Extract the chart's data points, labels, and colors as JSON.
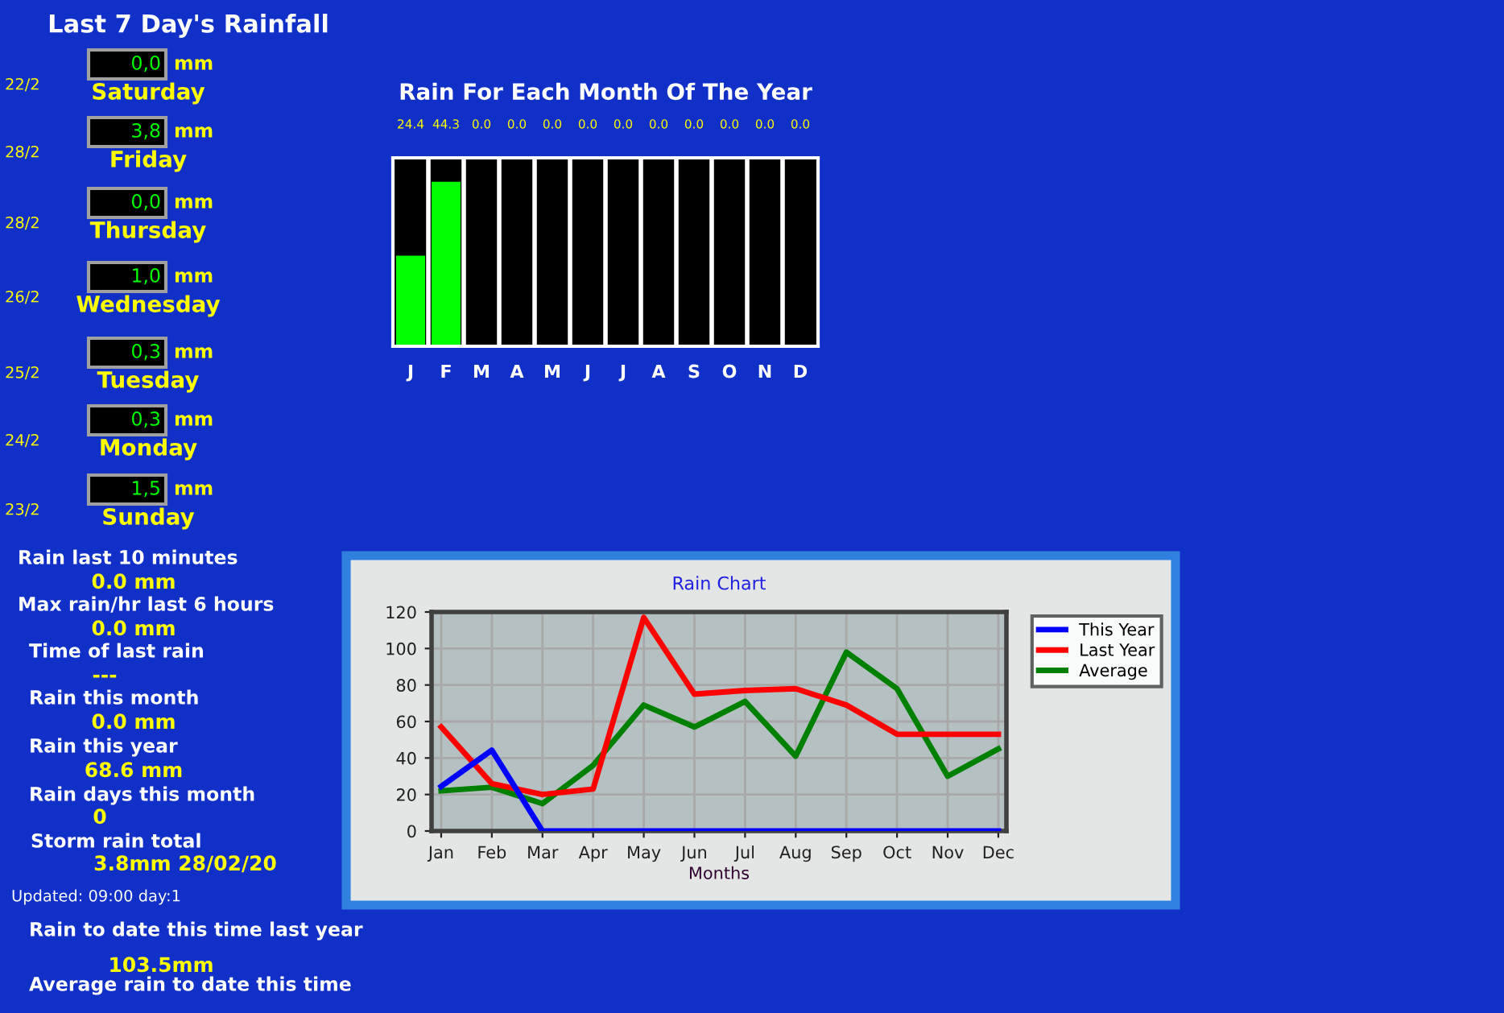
{
  "chart_data": [
    {
      "type": "other",
      "title": "Last 7 Day's Rainfall",
      "annotations": [
        "22/2",
        "0,0",
        "mm",
        "Saturday",
        "28/2",
        "3,8",
        "mm",
        "Friday",
        "28/2",
        "0,0",
        "mm",
        "Thursday",
        "26/2",
        "1,0",
        "mm",
        "Wednesday",
        "25/2",
        "0,3",
        "mm",
        "Tuesday",
        "24/2",
        "0,3",
        "mm",
        "Monday",
        "23/2",
        "1,5",
        "mm",
        "Sunday",
        "Rain last 10 minutes",
        "0.0 mm",
        "Max rain/hr last 6 hours",
        "0.0 mm",
        "Time of last rain",
        "---",
        "Rain this month",
        "0.0 mm",
        "Rain this year",
        "68.6 mm",
        "Rain days this month",
        "0",
        "Storm rain total",
        "3.8mm 28/02/20",
        "Updated: 09:00 day:1",
        "Rain to date this time last year",
        "103.5mm",
        "Average rain to date this time"
      ]
    },
    {
      "type": "bar",
      "title": "Rain For Each Month Of The Year",
      "categories": [
        "J",
        "F",
        "M",
        "A",
        "M",
        "J",
        "J",
        "A",
        "S",
        "O",
        "N",
        "D"
      ],
      "values": [
        24.4,
        44.3,
        0,
        0,
        0,
        0,
        0,
        0,
        0,
        0,
        0,
        0
      ],
      "color": "#00ff00",
      "value_labels": [
        "24.4",
        "44.3",
        "0.0",
        "0.0",
        "0.0",
        "0.0",
        "0.0",
        "0.0",
        "0.0",
        "0.0",
        "0.0",
        "0.0"
      ]
    },
    {
      "type": "line",
      "title": "Rain Chart",
      "xlabel": "Months",
      "categories": [
        "Jan",
        "Feb",
        "Mar",
        "Apr",
        "May",
        "Jun",
        "Jul",
        "Aug",
        "Sep",
        "Oct",
        "Nov",
        "Dec"
      ],
      "ylim": [
        0,
        120
      ],
      "yticks": [
        0,
        20,
        40,
        60,
        80,
        100,
        120
      ],
      "grid": true,
      "legend": "top right",
      "series": [
        {
          "name": "This Year",
          "color": "#0000ff",
          "values": [
            24.4,
            44.3,
            0,
            0,
            0,
            0,
            0,
            0,
            0,
            0,
            0,
            0
          ]
        },
        {
          "name": "Last Year",
          "color": "#ff0000",
          "values": [
            57,
            26,
            20,
            23,
            117,
            75,
            77,
            78,
            69,
            53,
            53,
            53
          ]
        },
        {
          "name": "Average",
          "color": "#008000",
          "values": [
            22,
            24,
            15,
            36,
            69,
            57,
            71,
            41,
            98,
            78,
            30,
            45
          ]
        }
      ]
    }
  ]
}
